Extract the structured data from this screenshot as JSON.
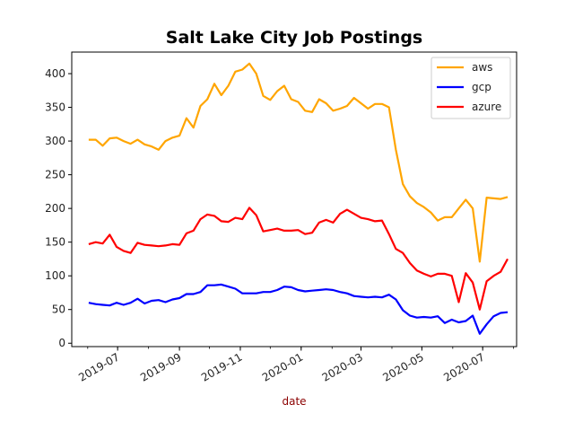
{
  "chart_data": {
    "type": "line",
    "title": "Salt Lake City Job Postings",
    "xlabel": "date",
    "xlabel_color": "#8b0000",
    "ylabel": "",
    "ylim": [
      -5,
      432
    ],
    "yticks": [
      0,
      50,
      100,
      150,
      200,
      250,
      300,
      350,
      400
    ],
    "xlim": [
      "2019-05-16",
      "2020-08-04"
    ],
    "xticks": [
      {
        "date": "2019-07-01",
        "label": "2019-07"
      },
      {
        "date": "2019-09-01",
        "label": "2019-09"
      },
      {
        "date": "2019-11-01",
        "label": "2019-11"
      },
      {
        "date": "2020-01-01",
        "label": "2020-01"
      },
      {
        "date": "2020-03-01",
        "label": "2020-03"
      },
      {
        "date": "2020-05-01",
        "label": "2020-05"
      },
      {
        "date": "2020-07-01",
        "label": "2020-07"
      }
    ],
    "grid": false,
    "legend_position": "top-right",
    "x": [
      "2019-06-02",
      "2019-06-09",
      "2019-06-16",
      "2019-06-23",
      "2019-06-30",
      "2019-07-07",
      "2019-07-14",
      "2019-07-21",
      "2019-07-28",
      "2019-08-04",
      "2019-08-11",
      "2019-08-18",
      "2019-08-25",
      "2019-09-01",
      "2019-09-08",
      "2019-09-15",
      "2019-09-22",
      "2019-09-29",
      "2019-10-06",
      "2019-10-13",
      "2019-10-20",
      "2019-10-27",
      "2019-11-03",
      "2019-11-10",
      "2019-11-17",
      "2019-11-24",
      "2019-12-01",
      "2019-12-08",
      "2019-12-15",
      "2019-12-22",
      "2019-12-29",
      "2020-01-05",
      "2020-01-12",
      "2020-01-19",
      "2020-01-26",
      "2020-02-02",
      "2020-02-09",
      "2020-02-16",
      "2020-02-23",
      "2020-03-01",
      "2020-03-08",
      "2020-03-15",
      "2020-03-22",
      "2020-03-29",
      "2020-04-05",
      "2020-04-12",
      "2020-04-19",
      "2020-04-26",
      "2020-05-03",
      "2020-05-10",
      "2020-05-17",
      "2020-05-24",
      "2020-05-31",
      "2020-06-07",
      "2020-06-14",
      "2020-06-21",
      "2020-06-28",
      "2020-07-05",
      "2020-07-12",
      "2020-07-19",
      "2020-07-26"
    ],
    "series": [
      {
        "name": "aws",
        "color": "#ffa500",
        "values": [
          302,
          302,
          293,
          304,
          305,
          300,
          296,
          302,
          295,
          292,
          287,
          300,
          305,
          308,
          334,
          320,
          352,
          362,
          385,
          368,
          382,
          403,
          406,
          415,
          400,
          367,
          361,
          374,
          382,
          362,
          358,
          345,
          343,
          362,
          356,
          345,
          348,
          352,
          364,
          356,
          348,
          355,
          355,
          350,
          287,
          236,
          218,
          208,
          202,
          194,
          182,
          187,
          187,
          200,
          213,
          200,
          121,
          216,
          215,
          214,
          217
        ]
      },
      {
        "name": "gcp",
        "color": "#0000ff",
        "values": [
          60,
          58,
          57,
          56,
          60,
          57,
          60,
          66,
          59,
          63,
          64,
          61,
          65,
          67,
          73,
          73,
          76,
          86,
          86,
          87,
          84,
          81,
          74,
          74,
          74,
          76,
          76,
          79,
          84,
          83,
          79,
          77,
          78,
          79,
          80,
          79,
          76,
          74,
          70,
          69,
          68,
          69,
          68,
          72,
          65,
          49,
          41,
          38,
          39,
          38,
          40,
          30,
          35,
          31,
          33,
          41,
          14,
          28,
          40,
          45,
          46
        ]
      },
      {
        "name": "azure",
        "color": "#ff0000",
        "values": [
          147,
          150,
          148,
          161,
          143,
          137,
          134,
          149,
          146,
          145,
          144,
          145,
          147,
          146,
          163,
          167,
          184,
          191,
          189,
          181,
          180,
          186,
          184,
          201,
          190,
          166,
          168,
          170,
          167,
          167,
          168,
          162,
          164,
          179,
          183,
          179,
          192,
          198,
          192,
          186,
          184,
          181,
          182,
          162,
          140,
          134,
          119,
          108,
          103,
          99,
          103,
          103,
          100,
          61,
          104,
          90,
          50,
          92,
          100,
          106,
          125
        ]
      }
    ]
  }
}
